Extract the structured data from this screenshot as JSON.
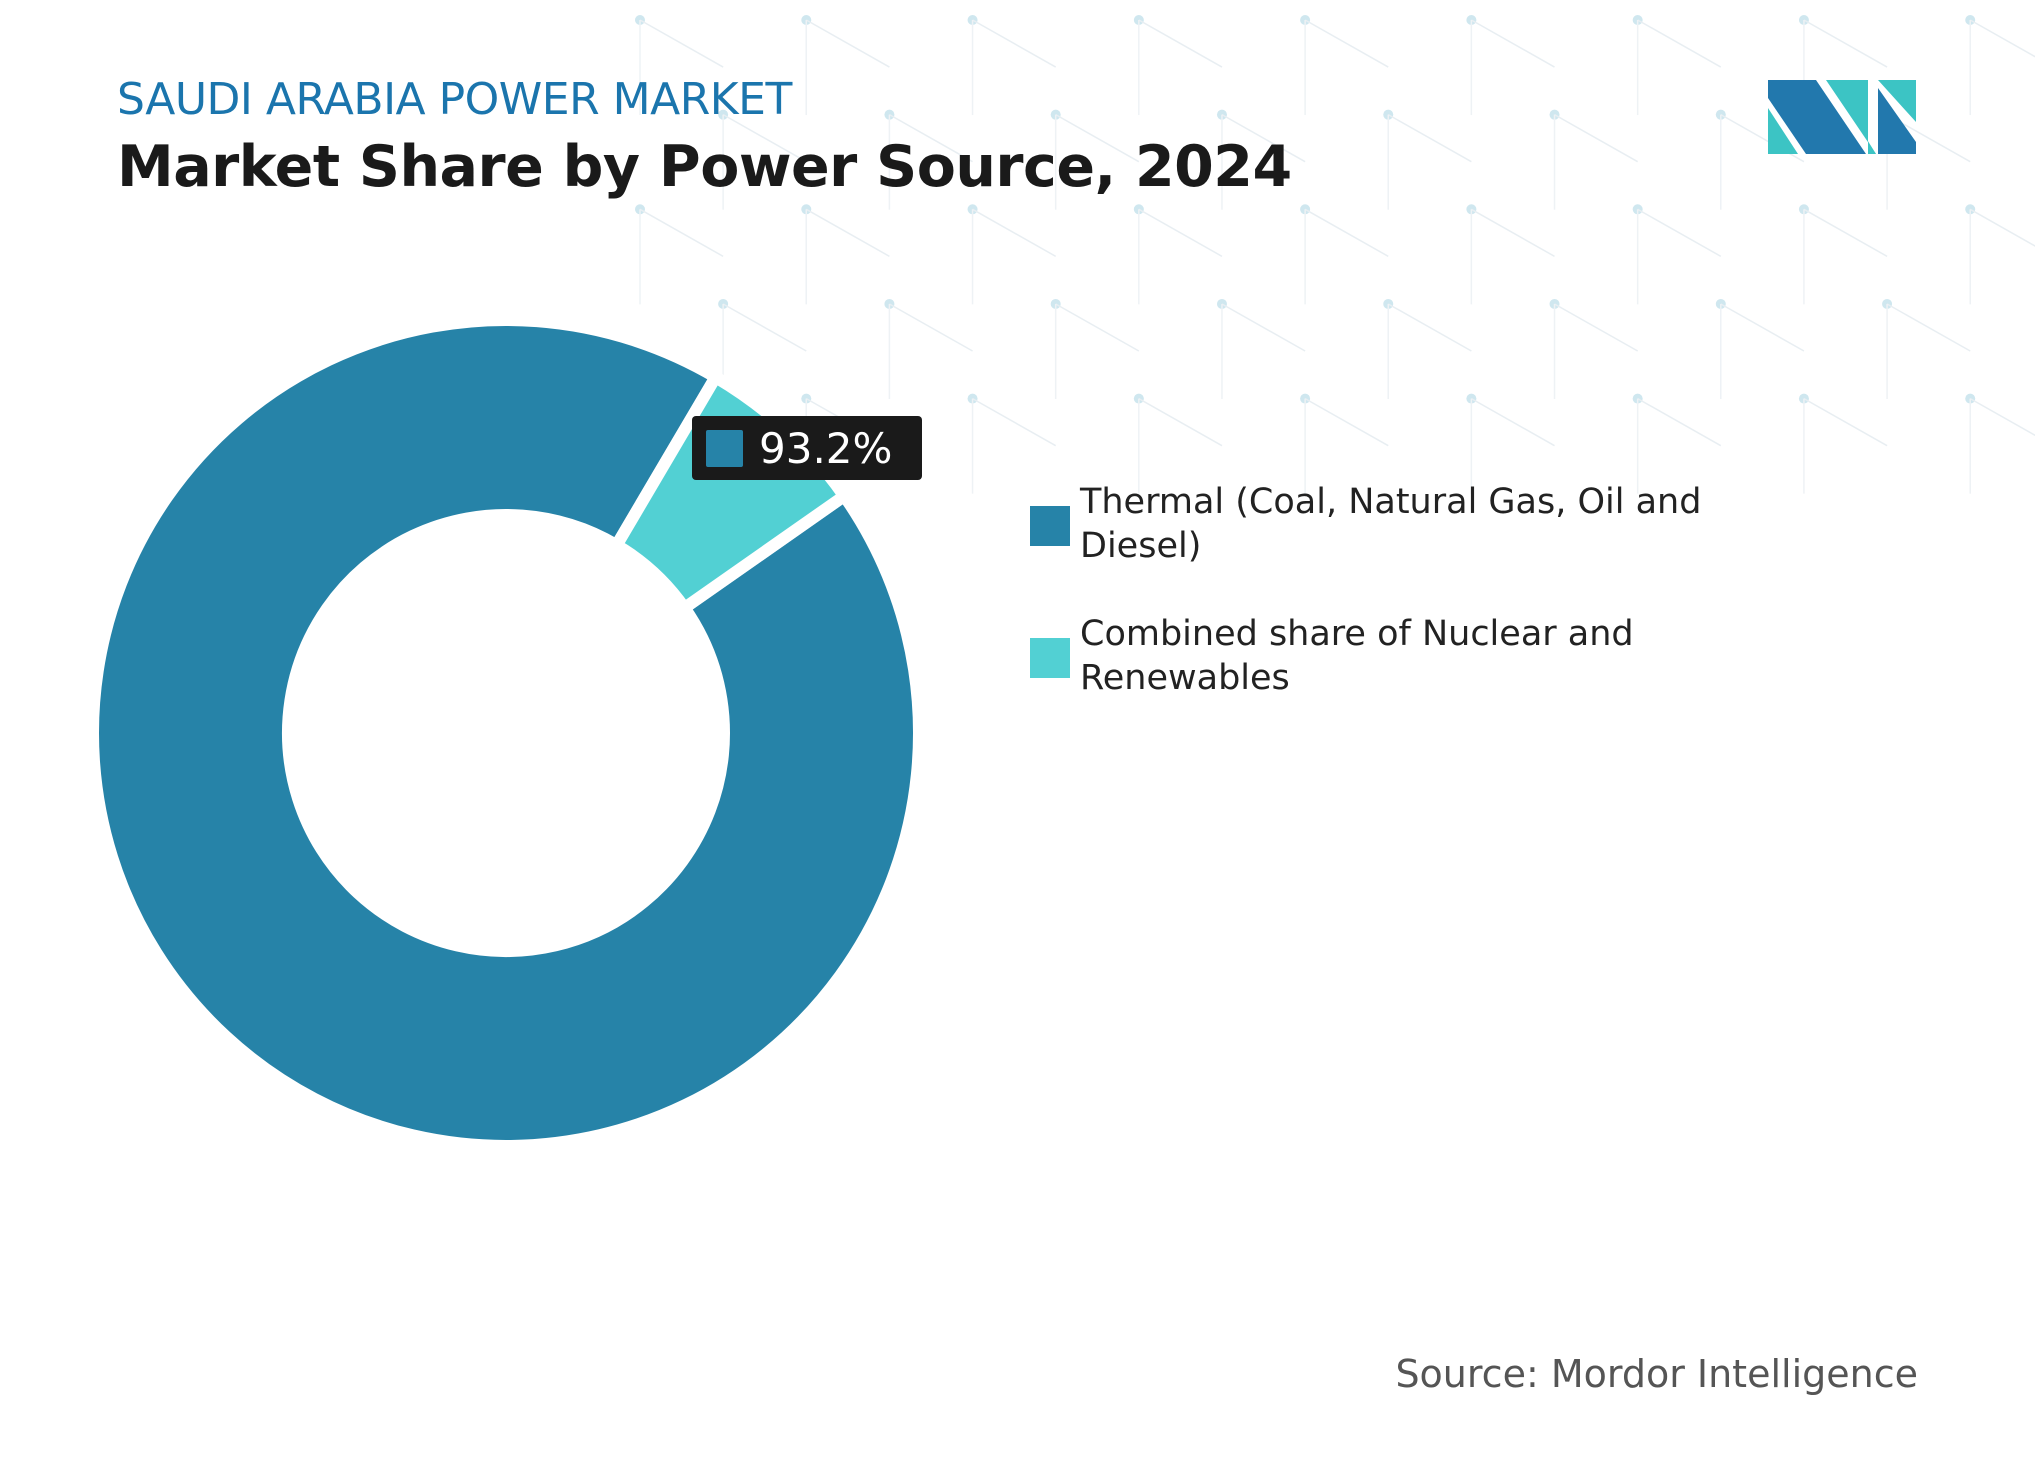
{
  "header": {
    "subtitle": "SAUDI ARABIA POWER MARKET",
    "title": "Market Share by Power Source, 2024"
  },
  "source": "Source: Mordor Intelligence",
  "logo": {
    "text": "MI",
    "colors": [
      "#2278ad",
      "#3cc4c4"
    ]
  },
  "chart_data": {
    "type": "pie",
    "variant": "donut",
    "series": [
      {
        "name": "Thermal (Coal, Natural Gas, Oil and Diesel)",
        "value": 93.2,
        "color": "#2683a8"
      },
      {
        "name": "Combined share of Nuclear and Renewables",
        "value": 6.8,
        "color": "#52d0d3"
      }
    ],
    "tooltip": {
      "label": "93.2%",
      "series_color": "#2683a8"
    },
    "legend_placement": "right"
  }
}
